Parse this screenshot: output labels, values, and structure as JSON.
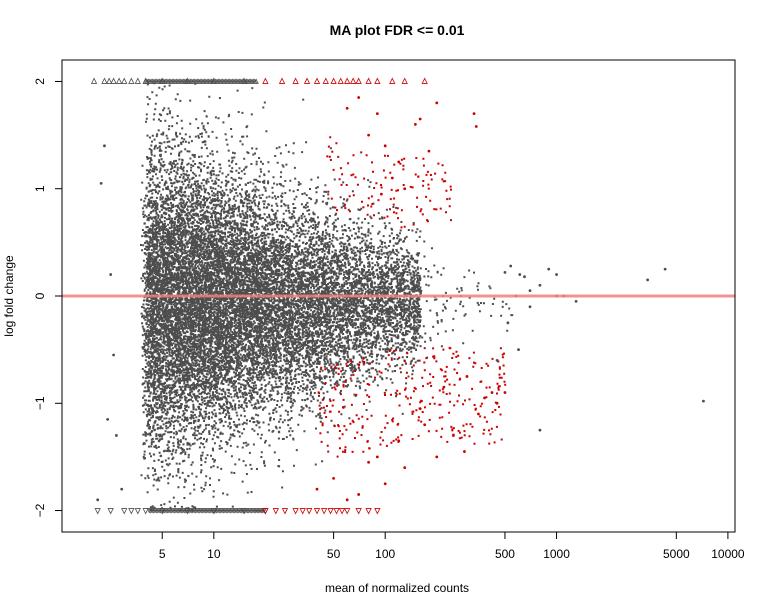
{
  "chart_data": {
    "type": "scatter",
    "title": "MA plot FDR <= 0.01",
    "xlabel": "mean of normalized counts",
    "ylabel": "log fold change",
    "x_scale": "log10",
    "xlim": [
      1.3,
      11000
    ],
    "ylim": [
      -2.2,
      2.2
    ],
    "x_ticks": [
      5,
      10,
      50,
      100,
      500,
      1000,
      5000,
      10000
    ],
    "x_tick_labels": [
      "5",
      "10",
      "50",
      "100",
      "500",
      "1000",
      "5000",
      "10000"
    ],
    "y_ticks": [
      -2,
      -1,
      0,
      1,
      2
    ],
    "y_tick_labels": [
      "−2",
      "−1",
      "0",
      "1",
      "2"
    ],
    "reference_line": {
      "y": 0,
      "color": "#f08080"
    },
    "grid": false,
    "legend": "none",
    "colors": {
      "not_significant": "#4d4d4d",
      "significant": "#cc0000",
      "reference_line": "#f08080"
    },
    "series": [
      {
        "name": "",
        "color": "#4d4d4d",
        "points": [
          [
            2.5,
            0.2
          ],
          [
            2.2,
            1.05
          ],
          [
            2.3,
            1.4
          ],
          [
            2.6,
            -0.55
          ],
          [
            2.4,
            -1.15
          ],
          [
            2.1,
            -1.9
          ],
          [
            2.7,
            -1.3
          ],
          [
            2.9,
            -1.8
          ],
          [
            500,
            0.22
          ],
          [
            540,
            0.28
          ],
          [
            580,
            0.0
          ],
          [
            610,
            0.2
          ],
          [
            650,
            0.18
          ],
          [
            700,
            0.05
          ],
          [
            800,
            0.1
          ],
          [
            900,
            0.25
          ],
          [
            1000,
            0.2
          ],
          [
            1100,
            0.0
          ],
          [
            1300,
            -0.05
          ],
          [
            3400,
            0.15
          ],
          [
            4300,
            0.25
          ],
          [
            7200,
            -0.98
          ],
          [
            800,
            -1.25
          ],
          [
            600,
            -0.5
          ],
          [
            450,
            -0.6
          ],
          [
            520,
            -0.25
          ],
          [
            700,
            -0.1
          ],
          [
            1000,
            0.0
          ]
        ],
        "clipped_high_x": [
          2.0,
          2.3,
          2.45,
          2.6,
          2.8,
          3.0,
          3.3,
          3.6,
          4.0,
          5.0,
          7.0,
          10.0,
          15.0
        ],
        "clipped_low_x": [
          2.1,
          2.5,
          3.0,
          3.3,
          3.6,
          4.0,
          5.0,
          7.0,
          10.0,
          15.0,
          20.0
        ]
      },
      {
        "name": "",
        "color": "#cc0000",
        "points": [
          [
            330,
            1.7
          ],
          [
            340,
            1.58
          ],
          [
            200,
            1.8
          ],
          [
            150,
            1.6
          ],
          [
            180,
            1.35
          ],
          [
            120,
            1.25
          ],
          [
            100,
            1.4
          ],
          [
            90,
            1.7
          ],
          [
            70,
            1.85
          ],
          [
            60,
            1.75
          ],
          [
            80,
            1.5
          ],
          [
            110,
            1.1
          ],
          [
            95,
            0.95
          ],
          [
            130,
            1.0
          ],
          [
            160,
            1.65
          ],
          [
            300,
            -0.75
          ],
          [
            380,
            -0.95
          ],
          [
            420,
            -0.9
          ],
          [
            250,
            -1.3
          ],
          [
            200,
            -1.5
          ],
          [
            130,
            -1.6
          ],
          [
            100,
            -1.75
          ],
          [
            70,
            -1.85
          ],
          [
            60,
            -1.9
          ],
          [
            50,
            -1.7
          ],
          [
            40,
            -1.8
          ],
          [
            90,
            -1.5
          ],
          [
            170,
            -1.2
          ],
          [
            450,
            -1.0
          ],
          [
            350,
            -1.1
          ],
          [
            220,
            -0.85
          ],
          [
            160,
            -1.05
          ],
          [
            120,
            -1.35
          ],
          [
            80,
            -1.55
          ],
          [
            290,
            -1.45
          ],
          [
            500,
            -0.9
          ]
        ],
        "clipped_high_x": [
          20,
          25,
          30,
          35,
          40,
          45,
          50,
          55,
          60,
          65,
          70,
          80,
          90,
          110,
          130,
          170
        ],
        "clipped_low_x": [
          20,
          23,
          26,
          30,
          33,
          36,
          40,
          44,
          48,
          52,
          56,
          60,
          70,
          80,
          90
        ]
      }
    ]
  }
}
